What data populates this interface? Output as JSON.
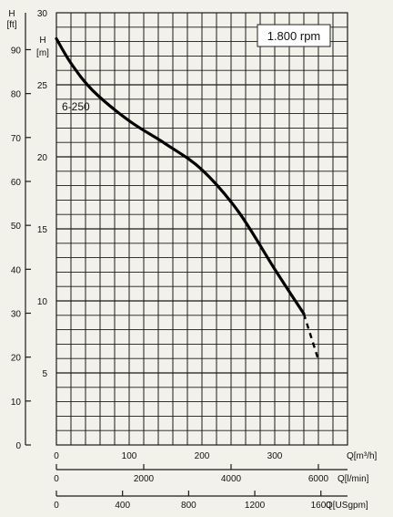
{
  "chart_data": {
    "type": "line",
    "speed_label": "1.800 rpm",
    "series": [
      {
        "name": "6-250",
        "x": [
          0,
          20,
          50,
          100,
          150,
          200,
          250,
          300,
          340
        ],
        "y": [
          28.2,
          26.5,
          24.6,
          22.5,
          20.9,
          19.1,
          16.2,
          12.2,
          9.1
        ],
        "extrapolated_x": [
          340,
          350,
          360
        ],
        "extrapolated_y": [
          9.1,
          7.5,
          5.9
        ]
      }
    ],
    "axes": {
      "h_m": {
        "label_line1": "H",
        "label_line2": "[m]",
        "range": [
          0,
          30
        ],
        "ticks": [
          "5",
          "10",
          "15",
          "20",
          "25",
          "30"
        ]
      },
      "h_ft": {
        "label_line1": "H",
        "label_line2": "[ft]",
        "range": [
          0,
          98.4
        ],
        "ticks": [
          "0",
          "10",
          "20",
          "30",
          "40",
          "50",
          "60",
          "70",
          "80",
          "90"
        ]
      },
      "q_m3h": {
        "label": "Q[m³/h]",
        "range": [
          0,
          400
        ],
        "ticks": [
          "0",
          "100",
          "200",
          "300"
        ]
      },
      "q_lmin": {
        "label": "Q[l/min]",
        "range": [
          0,
          6667
        ],
        "ticks": [
          "0",
          "2000",
          "4000",
          "6000"
        ]
      },
      "q_usgpm": {
        "label": "Q[USgpm]",
        "range": [
          0,
          1761
        ],
        "ticks": [
          "0",
          "400",
          "800",
          "1200",
          "1600"
        ]
      }
    },
    "grid": true,
    "colors": {
      "background": "#f2f2ea",
      "grid": "#1a1a1a",
      "curve": "#000000"
    }
  }
}
